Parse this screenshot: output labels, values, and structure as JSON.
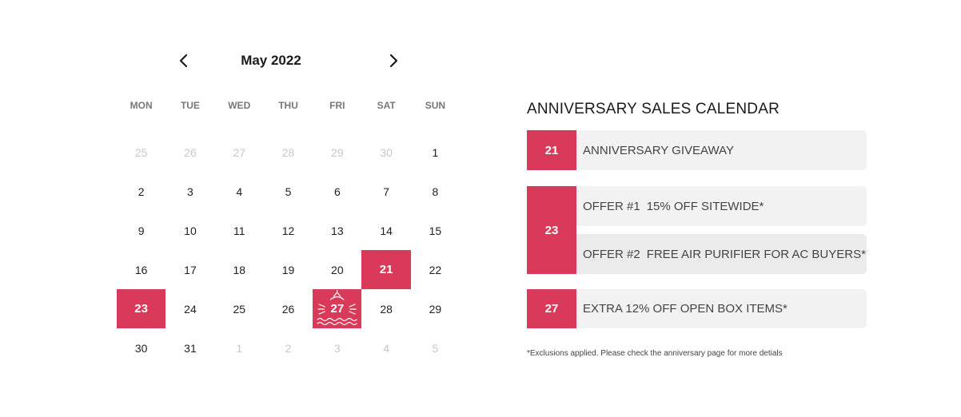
{
  "calendar": {
    "month_title": "May 2022",
    "prev_icon": "chevron-left-icon",
    "next_icon": "chevron-right-icon",
    "weekdays": [
      "MON",
      "TUE",
      "WED",
      "THU",
      "FRI",
      "SAT",
      "SUN"
    ],
    "days": [
      {
        "label": "25",
        "muted": true
      },
      {
        "label": "26",
        "muted": true
      },
      {
        "label": "27",
        "muted": true
      },
      {
        "label": "28",
        "muted": true
      },
      {
        "label": "29",
        "muted": true
      },
      {
        "label": "30",
        "muted": true
      },
      {
        "label": "1"
      },
      {
        "label": "2"
      },
      {
        "label": "3"
      },
      {
        "label": "4"
      },
      {
        "label": "5"
      },
      {
        "label": "6"
      },
      {
        "label": "7"
      },
      {
        "label": "8"
      },
      {
        "label": "9"
      },
      {
        "label": "10"
      },
      {
        "label": "11"
      },
      {
        "label": "12"
      },
      {
        "label": "13"
      },
      {
        "label": "14"
      },
      {
        "label": "15"
      },
      {
        "label": "16"
      },
      {
        "label": "17"
      },
      {
        "label": "18"
      },
      {
        "label": "19"
      },
      {
        "label": "20"
      },
      {
        "label": "21",
        "event": true
      },
      {
        "label": "22"
      },
      {
        "label": "23",
        "event": true
      },
      {
        "label": "24"
      },
      {
        "label": "25"
      },
      {
        "label": "26"
      },
      {
        "label": "27",
        "event": true,
        "party": true
      },
      {
        "label": "28"
      },
      {
        "label": "29"
      },
      {
        "label": "30"
      },
      {
        "label": "31"
      },
      {
        "label": "1",
        "muted": true
      },
      {
        "label": "2",
        "muted": true
      },
      {
        "label": "3",
        "muted": true
      },
      {
        "label": "4",
        "muted": true
      },
      {
        "label": "5",
        "muted": true
      }
    ]
  },
  "sales": {
    "title": "ANNIVERSARY SALES CALENDAR",
    "row_21": {
      "date": "21",
      "offer": "ANNIVERSARY GIVEAWAY"
    },
    "row_23": {
      "date": "23",
      "offer_a_num": "OFFER #1",
      "offer_a_text": "15% OFF SITEWIDE*",
      "offer_b_num": "OFFER #2",
      "offer_b_text": "FREE AIR PURIFIER FOR AC BUYERS*"
    },
    "row_27": {
      "date": "27",
      "offer": "EXTRA 12% OFF OPEN BOX ITEMS*"
    },
    "footnote": "*Exclusions applied. Please check the anniversary page for more detials"
  },
  "colors": {
    "accent": "#d93a5a",
    "offer_bg": "#f2f2f2",
    "muted_text": "#c7c7c7"
  }
}
